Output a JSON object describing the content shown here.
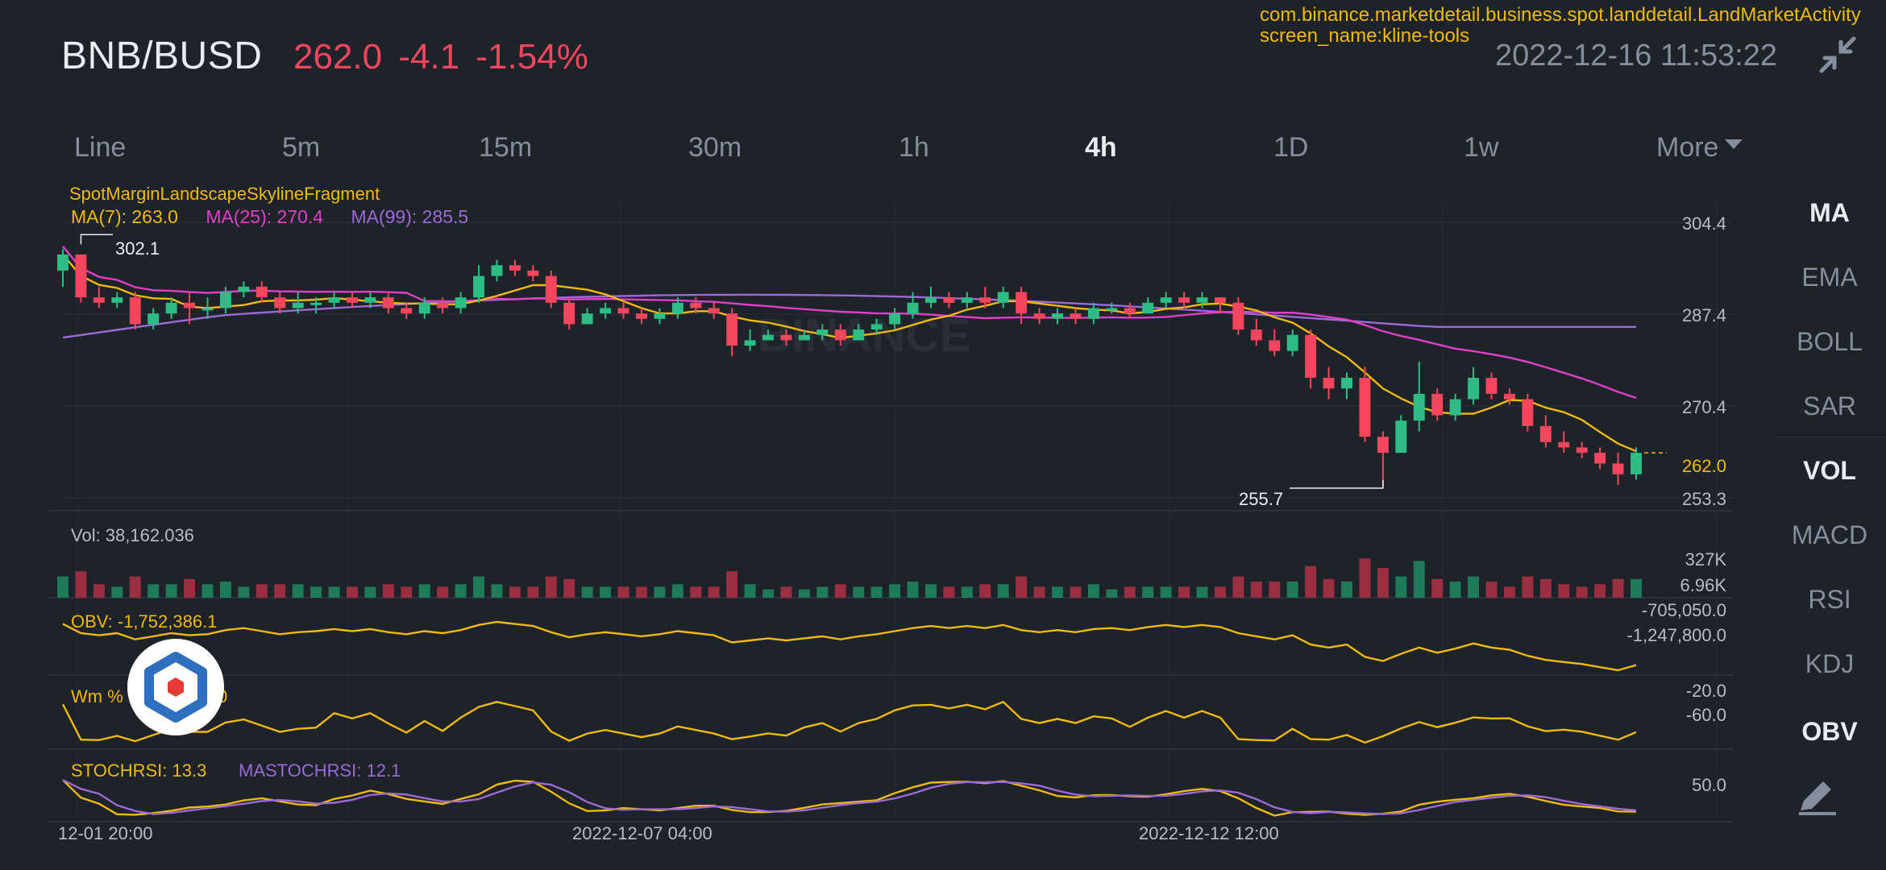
{
  "header": {
    "pair": "BNB/BUSD",
    "price": "262.0",
    "change": "-4.1",
    "change_pct": "-1.54%",
    "datetime": "2022-12-16 11:53:22",
    "activity": "com.binance.marketdetail.business.spot.landdetail.LandMarketActivity",
    "screen_name": "screen_name:kline-tools"
  },
  "tabs": [
    "Line",
    "5m",
    "15m",
    "30m",
    "1h",
    "4h",
    "1D",
    "1w"
  ],
  "tab_more": "More",
  "active_tab": "4h",
  "indicators": [
    "MA",
    "EMA",
    "BOLL",
    "SAR",
    "VOL",
    "MACD",
    "RSI",
    "KDJ",
    "OBV"
  ],
  "active_indicators": [
    "MA",
    "VOL",
    "OBV"
  ],
  "main_chart": {
    "fragment": "SpotMarginLandscapeSkylineFragment",
    "ma7": "MA(7): 263.0",
    "ma25": "MA(25): 270.4",
    "ma99": "MA(99): 285.5",
    "axis": [
      "304.4",
      "287.4",
      "270.4",
      "253.3"
    ],
    "last_price": "262.0",
    "high_label": "302.1",
    "low_label": "255.7",
    "watermark": "BINANCE"
  },
  "vol": {
    "label": "Vol: 38,162.036",
    "axis": [
      "327K",
      "6.96K"
    ]
  },
  "obv": {
    "label": "OBV: -1,752,386.1",
    "axis": [
      "-705,050.0",
      "-1,247,800.0"
    ]
  },
  "wm": {
    "label": "Wm %",
    "label_tail": "0",
    "axis": [
      "-20.0",
      "-60.0"
    ]
  },
  "stoch": {
    "label": "STOCHRSI: 13.3",
    "ma_label": "MASTOCHRSI: 12.1",
    "axis": [
      "50.0"
    ]
  },
  "time_axis": [
    "12-01 20:00",
    "2022-12-07 04:00",
    "2022-12-12 12:00"
  ],
  "colors": {
    "up": "#2ebd85",
    "down": "#f6465d",
    "ma7": "#f0b90b",
    "ma25": "#e040c8",
    "ma99": "#9b6ad6",
    "bg": "#1e2329",
    "muted": "#848e9c"
  },
  "icons": {
    "exit_fullscreen": "shrink-arrows-icon",
    "draw": "pen-icon",
    "floating": "hexagon-logo-icon"
  },
  "chart_data": {
    "type": "candlestick",
    "candles": [
      [
        296,
        299,
        300,
        293
      ],
      [
        299,
        291,
        299,
        290
      ],
      [
        291,
        290,
        293,
        289
      ],
      [
        290,
        291,
        292,
        289
      ],
      [
        291,
        286,
        292,
        285
      ],
      [
        286,
        288,
        289,
        285
      ],
      [
        288,
        290,
        291,
        287
      ],
      [
        290,
        289,
        292,
        286
      ],
      [
        289,
        289,
        291,
        287
      ],
      [
        289,
        292,
        293,
        288
      ],
      [
        292,
        293,
        294,
        291
      ],
      [
        293,
        291,
        294,
        290
      ],
      [
        291,
        289,
        292,
        288
      ],
      [
        289,
        290,
        292,
        288
      ],
      [
        290,
        290,
        291,
        288
      ],
      [
        290,
        291,
        292,
        289
      ],
      [
        291,
        290,
        292,
        289
      ],
      [
        290,
        291,
        292,
        289
      ],
      [
        291,
        289,
        292,
        288
      ],
      [
        289,
        288,
        290,
        287
      ],
      [
        288,
        290,
        291,
        287
      ],
      [
        290,
        289,
        291,
        288
      ],
      [
        289,
        291,
        292,
        288
      ],
      [
        291,
        295,
        297,
        290
      ],
      [
        295,
        297,
        298,
        294
      ],
      [
        297,
        296,
        298,
        295
      ],
      [
        296,
        295,
        297,
        294
      ],
      [
        295,
        290,
        296,
        289
      ],
      [
        290,
        286,
        291,
        285
      ],
      [
        286,
        288,
        289,
        286
      ],
      [
        288,
        289,
        290,
        287
      ],
      [
        289,
        288,
        290,
        287
      ],
      [
        288,
        287,
        289,
        286
      ],
      [
        287,
        288,
        289,
        286
      ],
      [
        288,
        290,
        291,
        287
      ],
      [
        290,
        289,
        291,
        288
      ],
      [
        289,
        288,
        290,
        287
      ],
      [
        288,
        282,
        289,
        280
      ],
      [
        282,
        283,
        285,
        281
      ],
      [
        283,
        284,
        285,
        283
      ],
      [
        284,
        283,
        285,
        282
      ],
      [
        283,
        284,
        285,
        283
      ],
      [
        284,
        285,
        286,
        283
      ],
      [
        285,
        283,
        286,
        282
      ],
      [
        283,
        285,
        286,
        283
      ],
      [
        285,
        286,
        287,
        284
      ],
      [
        286,
        288,
        289,
        285
      ],
      [
        288,
        290,
        292,
        287
      ],
      [
        290,
        291,
        293,
        289
      ],
      [
        291,
        290,
        292,
        289
      ],
      [
        290,
        291,
        292,
        289
      ],
      [
        291,
        290,
        293,
        289
      ],
      [
        290,
        292,
        293,
        289
      ],
      [
        292,
        288,
        293,
        286
      ],
      [
        288,
        287,
        289,
        286
      ],
      [
        287,
        288,
        289,
        286
      ],
      [
        288,
        287,
        289,
        286
      ],
      [
        287,
        289,
        290,
        286
      ],
      [
        289,
        289,
        290,
        288
      ],
      [
        289,
        288,
        290,
        287
      ],
      [
        288,
        290,
        291,
        288
      ],
      [
        290,
        291,
        292,
        289
      ],
      [
        291,
        290,
        292,
        289
      ],
      [
        290,
        291,
        292,
        289
      ],
      [
        291,
        290,
        291,
        288
      ],
      [
        290,
        285,
        291,
        284
      ],
      [
        285,
        283,
        287,
        282
      ],
      [
        283,
        281,
        285,
        280
      ],
      [
        281,
        284,
        285,
        280
      ],
      [
        284,
        276,
        285,
        274
      ],
      [
        276,
        274,
        278,
        272
      ],
      [
        274,
        276,
        277,
        272
      ],
      [
        276,
        265,
        278,
        264
      ],
      [
        265,
        262,
        266,
        255.7
      ],
      [
        262,
        268,
        269,
        262
      ],
      [
        268,
        273,
        279,
        266
      ],
      [
        273,
        269,
        274,
        268
      ],
      [
        269,
        272,
        273,
        268
      ],
      [
        272,
        276,
        278,
        271
      ],
      [
        276,
        273,
        277,
        272
      ],
      [
        273,
        272,
        274,
        271
      ],
      [
        272,
        267,
        273,
        266
      ],
      [
        267,
        264,
        269,
        263
      ],
      [
        264,
        263,
        266,
        262
      ],
      [
        263,
        262,
        264,
        261
      ],
      [
        262,
        260,
        263,
        259
      ],
      [
        260,
        258,
        262,
        256
      ],
      [
        258,
        262,
        263,
        257
      ]
    ],
    "ma7_last": 263.0,
    "ma25_last": 270.4,
    "ma99_last": 285.5,
    "price_range": [
      253.3,
      304.4
    ],
    "high": 302.1,
    "low": 255.7
  }
}
